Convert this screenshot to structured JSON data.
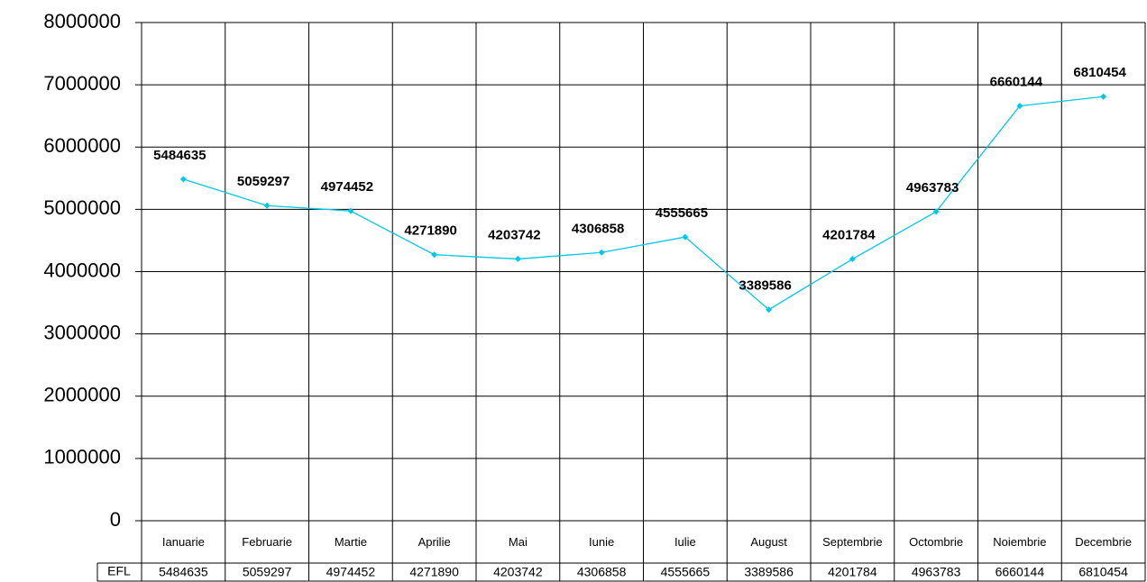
{
  "chart_data": {
    "type": "line",
    "categories": [
      "Ianuarie",
      "Februarie",
      "Martie",
      "Aprilie",
      "Mai",
      "Iunie",
      "Iulie",
      "August",
      "Septembrie",
      "Octombrie",
      "Noiembrie",
      "Decembrie"
    ],
    "series": [
      {
        "name": "EFL",
        "color": "#00c8e6",
        "values": [
          5484635,
          5059297,
          4974452,
          4271890,
          4203742,
          4306858,
          4555665,
          3389586,
          4201784,
          4963783,
          6660144,
          6810454
        ]
      }
    ],
    "ylim": [
      0,
      8000000
    ],
    "yticks": [
      0,
      1000000,
      2000000,
      3000000,
      4000000,
      5000000,
      6000000,
      7000000,
      8000000
    ],
    "grid": true
  }
}
